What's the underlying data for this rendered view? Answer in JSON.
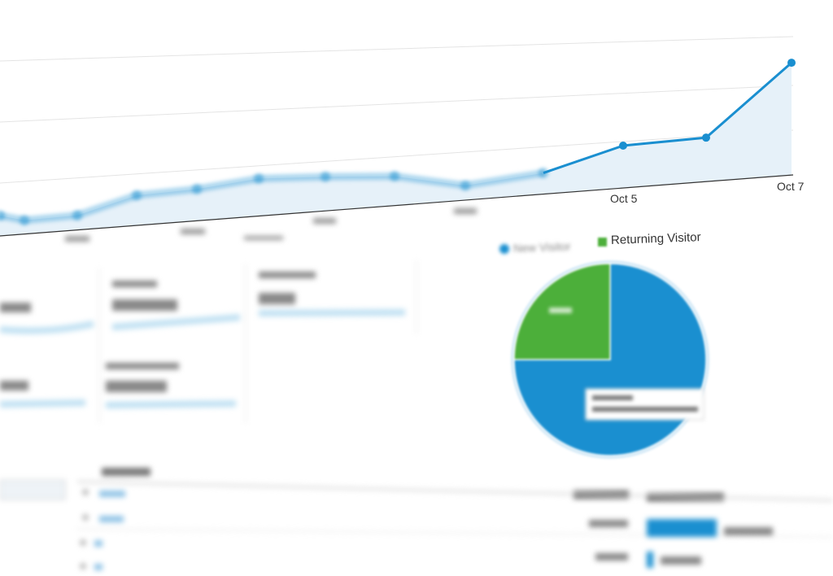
{
  "legend": {
    "new_visitor_color": "#1a8fd0",
    "returning_visitor_label": "Returning Visitor",
    "returning_visitor_color": "#4caf3a"
  },
  "chart_data": [
    {
      "type": "area",
      "x_tick_labels_visible": [
        "Oct 5",
        "Oct 7"
      ],
      "series": [
        {
          "color": "#1a8fd0",
          "values": [
            25,
            17,
            18,
            37,
            39,
            46,
            42,
            36,
            18,
            26,
            52,
            54,
            138
          ]
        }
      ],
      "grid": true
    },
    {
      "type": "pie",
      "slices": [
        {
          "label": "New Visitor",
          "value": 75,
          "color": "#1a8fd0"
        },
        {
          "label": "Returning Visitor",
          "value": 25,
          "color": "#4caf3a"
        }
      ]
    }
  ]
}
